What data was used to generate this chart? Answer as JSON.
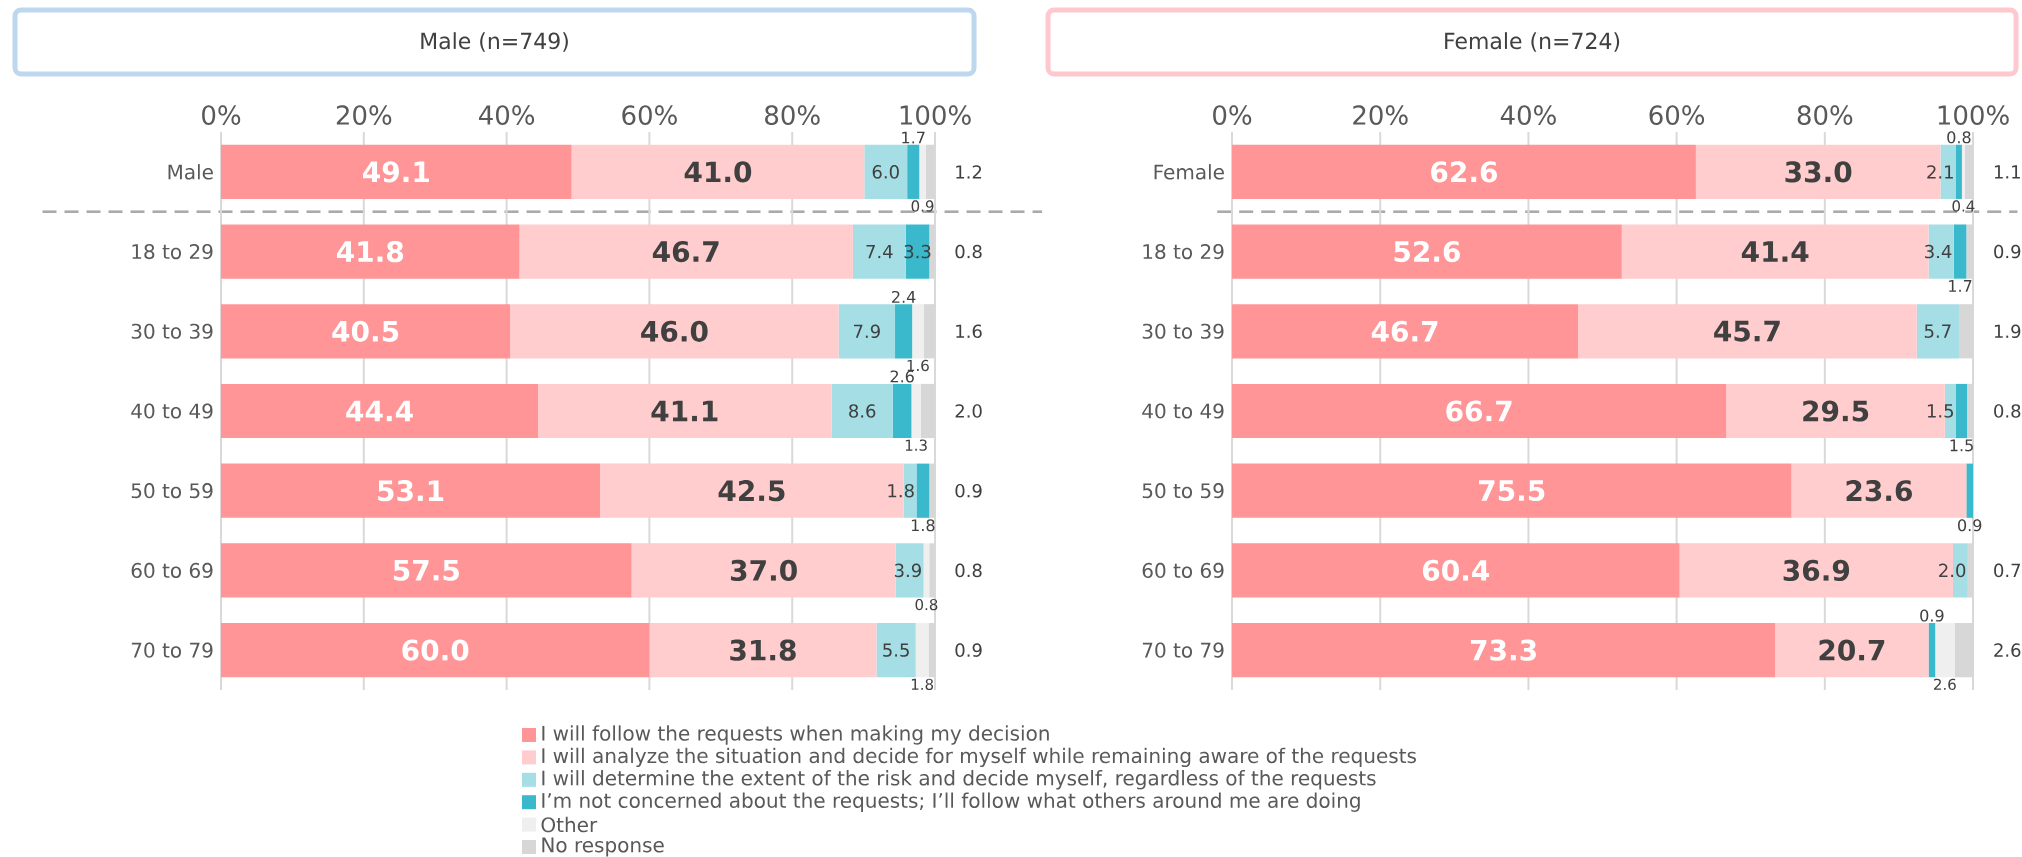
{
  "chart_data": [
    {
      "type": "bar",
      "orientation": "horizontal",
      "stacked": true,
      "title": "Male (n=749)",
      "categories": [
        "Male",
        "18 to 29",
        "30 to 39",
        "40 to 49",
        "50 to 59",
        "60 to 69",
        "70 to 79"
      ],
      "series": [
        {
          "name": "I will follow the requests when making my decision",
          "color": "#ff9596",
          "values": [
            49.1,
            41.8,
            40.5,
            44.4,
            53.1,
            57.5,
            60.0
          ],
          "value_labels": [
            "49.1",
            "41.8",
            "40.5",
            "44.4",
            "53.1",
            "57.5",
            "60.0"
          ]
        },
        {
          "name": "I will analyze the situation and decide for myself while remaining aware of the requests",
          "color": "#ffcdcd",
          "values": [
            41.0,
            46.7,
            46.0,
            41.1,
            42.5,
            37.0,
            31.8
          ],
          "value_labels": [
            "41.0",
            "46.7",
            "46.0",
            "41.1",
            "42.5",
            "37.0",
            "31.8"
          ]
        },
        {
          "name": "I will determine the extent of the risk and decide myself, regardless of the requests",
          "color": "#a6dee6",
          "values": [
            6.0,
            7.4,
            7.9,
            8.6,
            1.8,
            3.9,
            5.5
          ],
          "value_labels": [
            "6.0",
            "7.4",
            "7.9",
            "8.6",
            "1.8",
            "3.9",
            "5.5"
          ]
        },
        {
          "name": "I’m not concerned about the requests; I’ll follow what others around me are doing",
          "color": "#3bb9cc",
          "values": [
            1.7,
            3.3,
            2.4,
            2.6,
            1.8,
            null,
            null
          ],
          "value_labels": [
            "1.7",
            "3.3",
            "2.4",
            "2.6",
            "1.8",
            null,
            null
          ]
        },
        {
          "name": "Other",
          "color": "#efefef",
          "values": [
            0.9,
            null,
            1.6,
            1.3,
            null,
            0.8,
            1.8
          ],
          "value_labels": [
            "0.9",
            null,
            "1.6",
            "1.3",
            null,
            "0.8",
            "1.8"
          ]
        },
        {
          "name": "No response",
          "color": "#d7d7d7",
          "values": [
            1.2,
            0.8,
            1.6,
            2.0,
            0.9,
            0.8,
            0.9
          ],
          "value_labels": [
            "1.2",
            "0.8",
            "1.6",
            "2.0",
            "0.9",
            "0.8",
            "0.9"
          ]
        }
      ],
      "xlim": [
        0,
        100
      ],
      "xticks": [
        {
          "value": 0,
          "label": "0%"
        },
        {
          "value": 20,
          "label": "20%"
        },
        {
          "value": 40,
          "label": "40%"
        },
        {
          "value": 60,
          "label": "60%"
        },
        {
          "value": 80,
          "label": "80%"
        },
        {
          "value": 100,
          "label": "100%"
        }
      ],
      "grid": "x",
      "legend": "bottom"
    },
    {
      "type": "bar",
      "orientation": "horizontal",
      "stacked": true,
      "title": "Female (n=724)",
      "categories": [
        "Female",
        "18 to 29",
        "30 to 39",
        "40 to 49",
        "50 to 59",
        "60 to 69",
        "70 to 79"
      ],
      "series": [
        {
          "color": "#ff9596",
          "values": [
            62.6,
            52.6,
            46.7,
            66.7,
            75.5,
            60.4,
            73.3
          ],
          "value_labels": [
            "62.6",
            "52.6",
            "46.7",
            "66.7",
            "75.5",
            "60.4",
            "73.3"
          ]
        },
        {
          "color": "#ffcdcd",
          "values": [
            33.0,
            41.4,
            45.7,
            29.5,
            23.6,
            36.9,
            20.7
          ],
          "value_labels": [
            "33.0",
            "41.4",
            "45.7",
            "29.5",
            "23.6",
            "36.9",
            "20.7"
          ]
        },
        {
          "color": "#a6dee6",
          "values": [
            2.1,
            3.4,
            5.7,
            1.5,
            null,
            2.0,
            null
          ],
          "value_labels": [
            "2.1",
            "3.4",
            "5.7",
            "1.5",
            null,
            "2.0",
            null
          ]
        },
        {
          "color": "#3bb9cc",
          "values": [
            0.8,
            1.7,
            null,
            1.5,
            0.9,
            null,
            0.9
          ],
          "value_labels": [
            "0.8",
            "1.7",
            null,
            "1.5",
            "0.9",
            null,
            "0.9"
          ]
        },
        {
          "color": "#efefef",
          "values": [
            0.4,
            null,
            null,
            null,
            null,
            null,
            2.6
          ],
          "value_labels": [
            "0.4",
            null,
            null,
            null,
            null,
            null,
            "2.6"
          ]
        },
        {
          "color": "#d7d7d7",
          "values": [
            1.1,
            0.9,
            1.9,
            0.8,
            null,
            0.7,
            2.6
          ],
          "value_labels": [
            "1.1",
            "0.9",
            "1.9",
            "0.8",
            null,
            "0.7",
            "2.6"
          ]
        }
      ],
      "xlim": [
        0,
        100
      ],
      "xticks": [
        {
          "value": 0,
          "label": "0%"
        },
        {
          "value": 20,
          "label": "20%"
        },
        {
          "value": 40,
          "label": "40%"
        },
        {
          "value": 60,
          "label": "60%"
        },
        {
          "value": 80,
          "label": "80%"
        },
        {
          "value": 100,
          "label": "100%"
        }
      ],
      "grid": "x"
    }
  ]
}
